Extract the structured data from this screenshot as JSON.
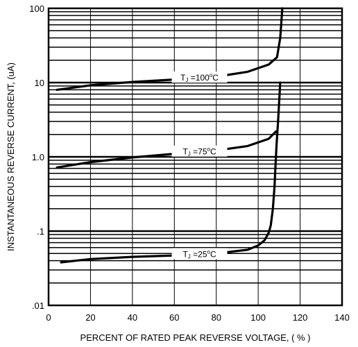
{
  "chart_data": {
    "type": "line",
    "title": "",
    "xlabel": "PERCENT OF RATED PEAK REVERSE VOLTAGE, ( % )",
    "ylabel": "INSTANTANEOUS REVERSE CURRENT, (uA)",
    "xlim": [
      0,
      140
    ],
    "ylim": [
      0.01,
      100
    ],
    "yscale": "log",
    "grid": true,
    "x_ticks": [
      0,
      20,
      40,
      60,
      80,
      100,
      120,
      140
    ],
    "x_tick_labels": [
      "0",
      "20",
      "40",
      "60",
      "80",
      "100",
      "120",
      "140"
    ],
    "y_ticks": [
      0.01,
      0.1,
      1.0,
      10,
      100
    ],
    "y_tick_labels": [
      ".01",
      ".1",
      "1.0",
      "10",
      "100"
    ],
    "series": [
      {
        "name": "TJ =100°C",
        "label": {
          "main": "T",
          "sub": "J",
          "rest": " =100",
          "sup": "o",
          "unit": "C",
          "at_x": 72
        },
        "x": [
          4,
          20,
          40,
          60,
          80,
          95,
          105,
          109,
          110.5,
          111.5
        ],
        "y": [
          8,
          9.2,
          10.2,
          11,
          12,
          14,
          17.5,
          22,
          40,
          100
        ]
      },
      {
        "name": "TJ =75°C",
        "label": {
          "main": "T",
          "sub": "J",
          "rest": " =75",
          "sup": "o",
          "unit": "C",
          "at_x": 72
        },
        "x": [
          4,
          20,
          40,
          60,
          80,
          95,
          105,
          108.5
        ],
        "y": [
          0.72,
          0.85,
          0.98,
          1.1,
          1.22,
          1.4,
          1.75,
          2.2
        ]
      },
      {
        "name": "TJ =25°C",
        "label": {
          "main": "T",
          "sub": "J",
          "rest": " =25",
          "sup": "o",
          "unit": "C",
          "at_x": 72
        },
        "x": [
          6,
          20,
          40,
          60,
          80,
          95,
          100,
          103,
          105,
          106,
          107,
          107.8,
          108.3,
          108.8,
          109.5,
          110.5
        ],
        "y": [
          0.038,
          0.042,
          0.045,
          0.047,
          0.05,
          0.056,
          0.064,
          0.075,
          0.095,
          0.12,
          0.2,
          0.4,
          0.8,
          1.5,
          3,
          10
        ]
      }
    ]
  }
}
